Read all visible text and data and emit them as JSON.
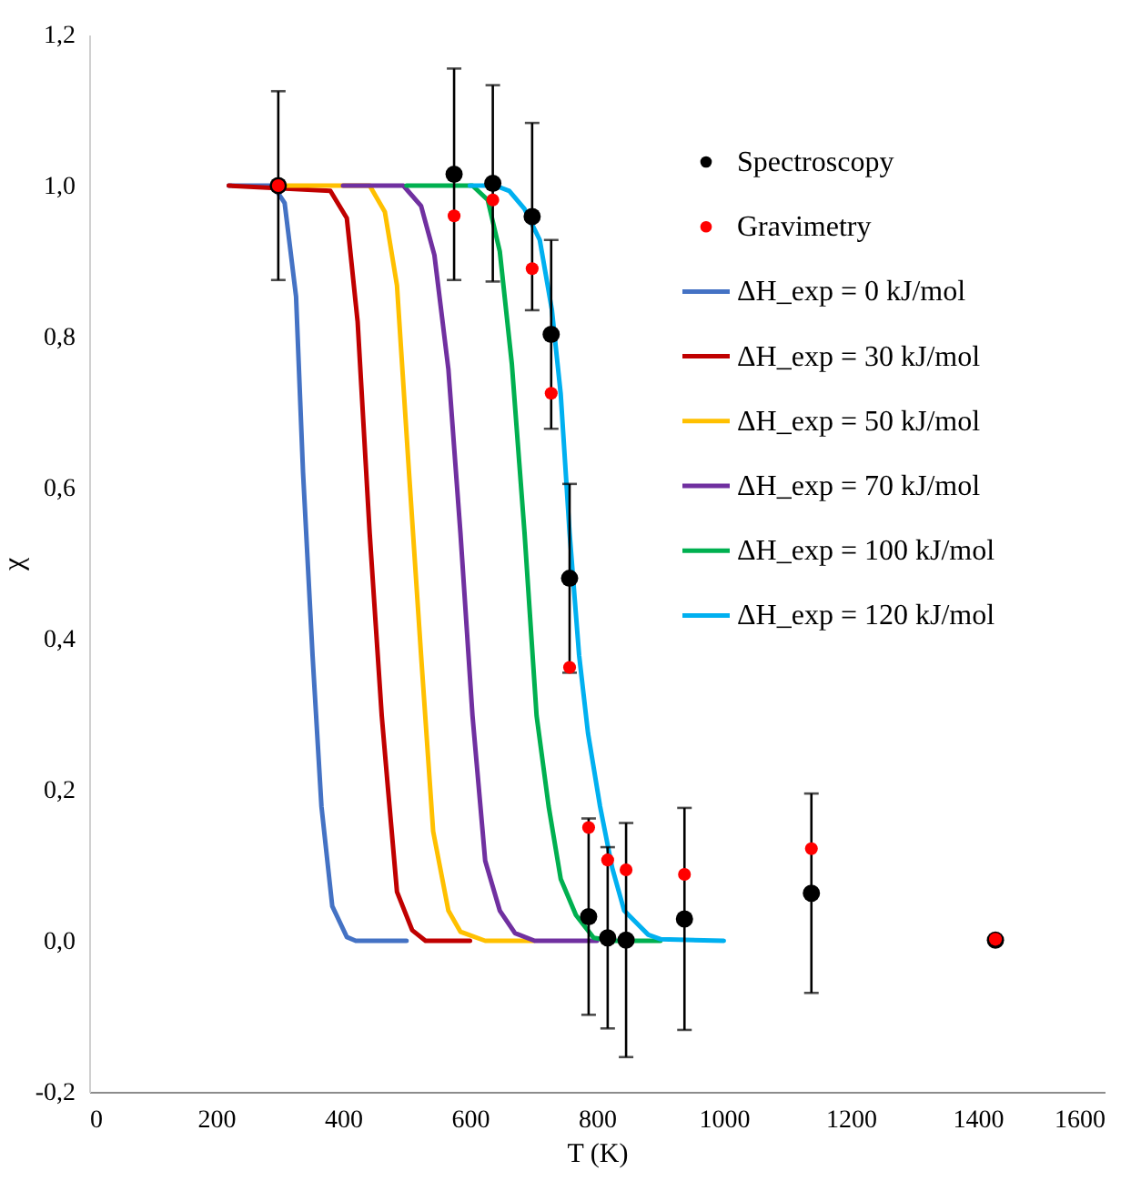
{
  "chart_data": {
    "type": "scatter",
    "xlabel": "T (K)",
    "ylabel": "χ",
    "xlim": [
      0,
      1600
    ],
    "xticks": [
      0,
      200,
      400,
      600,
      800,
      1000,
      1200,
      1400,
      1600
    ],
    "ylim": [
      -0.2,
      1.2
    ],
    "yticks": [
      {
        "value": -0.2,
        "label": "-0,2"
      },
      {
        "value": 0,
        "label": "0,0"
      },
      {
        "value": 0.2,
        "label": "0,2"
      },
      {
        "value": 0.4,
        "label": "0,4"
      },
      {
        "value": 0.6,
        "label": "0,6"
      },
      {
        "value": 0.8,
        "label": "0,8"
      },
      {
        "value": 1,
        "label": "1,0"
      },
      {
        "value": 1.2,
        "label": "1,2"
      }
    ],
    "grid": false,
    "legend": "top right",
    "series": [
      {
        "name": "Spectroscopy",
        "type": "scatter",
        "marker": "circle",
        "color": "#000000",
        "x": [
          298,
          575,
          636,
          698,
          728,
          757,
          787,
          817,
          846,
          938,
          1138,
          1428
        ],
        "values": [
          1.0,
          1.015,
          1.003,
          0.959,
          0.803,
          0.48,
          0.032,
          0.004,
          0.001,
          0.029,
          0.063,
          0.001
        ],
        "errors": [
          0.125,
          0.14,
          0.13,
          0.124,
          0.125,
          0.125,
          0.13,
          0.12,
          0.155,
          0.147,
          0.132,
          null
        ]
      },
      {
        "name": "Gravimetry",
        "type": "scatter",
        "marker": "circle",
        "color": "#ff0000",
        "x": [
          298,
          575,
          636,
          698,
          728,
          757,
          787,
          817,
          846,
          938,
          1138,
          1428
        ],
        "values": [
          1.0,
          0.96,
          0.981,
          0.89,
          0.725,
          0.362,
          0.15,
          0.107,
          0.094,
          0.088,
          0.122,
          0.002
        ]
      },
      {
        "name": "ΔH_exp = 0 kJ/mol",
        "type": "line",
        "marker": "none",
        "color": "#4472c4",
        "x": [
          220,
          290,
          308,
          326,
          337,
          352,
          366,
          383,
          406,
          420,
          500
        ],
        "values": [
          1,
          1,
          0.977,
          0.853,
          0.62,
          0.378,
          0.178,
          0.046,
          0.005,
          0,
          0
        ]
      },
      {
        "name": "ΔH_exp = 30 kJ/mol",
        "type": "line",
        "marker": "none",
        "color": "#c00000",
        "x": [
          220,
          380,
          406,
          423,
          442,
          461,
          471,
          485,
          509,
          530,
          600
        ],
        "values": [
          1,
          0.993,
          0.957,
          0.82,
          0.54,
          0.298,
          0.2,
          0.065,
          0.014,
          0,
          0
        ]
      },
      {
        "name": "ΔH_exp = 50 kJ/mol",
        "type": "line",
        "marker": "none",
        "color": "#ffc000",
        "x": [
          300,
          442,
          466,
          485,
          504,
          523,
          542,
          566,
          585,
          624,
          700
        ],
        "values": [
          1,
          1,
          0.965,
          0.868,
          0.62,
          0.378,
          0.145,
          0.04,
          0.012,
          0,
          0
        ]
      },
      {
        "name": "ΔH_exp = 70 kJ/mol",
        "type": "line",
        "marker": "none",
        "color": "#7030a0",
        "x": [
          400,
          495,
          523,
          544,
          566,
          585,
          604,
          624,
          647,
          671,
          702,
          800
        ],
        "values": [
          1,
          1,
          0.973,
          0.908,
          0.757,
          0.54,
          0.298,
          0.106,
          0.04,
          0.01,
          0,
          0
        ]
      },
      {
        "name": "ΔH_exp = 100 kJ/mol",
        "type": "line",
        "marker": "none",
        "color": "#00b050",
        "x": [
          500,
          604,
          628,
          647,
          666,
          686,
          705,
          724,
          743,
          767,
          795,
          825,
          900
        ],
        "values": [
          1,
          1,
          0.981,
          0.913,
          0.764,
          0.54,
          0.298,
          0.178,
          0.082,
          0.034,
          0.004,
          0,
          0
        ]
      },
      {
        "name": "ΔH_exp = 120 kJ/mol",
        "type": "line",
        "marker": "none",
        "color": "#00b0f0",
        "x": [
          600,
          640,
          662,
          686,
          710,
          729,
          743,
          757,
          772,
          786,
          805,
          824,
          843,
          881,
          901,
          1000
        ],
        "values": [
          1,
          1,
          0.993,
          0.969,
          0.928,
          0.836,
          0.724,
          0.54,
          0.378,
          0.275,
          0.178,
          0.097,
          0.04,
          0.008,
          0.002,
          0
        ]
      }
    ]
  }
}
